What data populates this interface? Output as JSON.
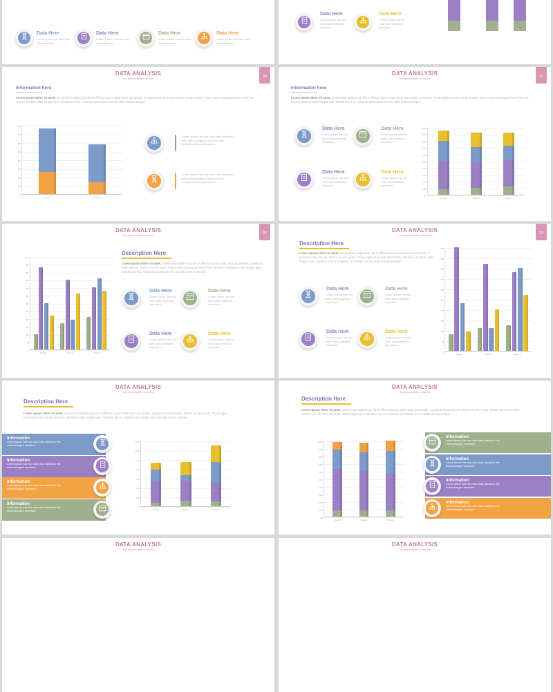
{
  "colors": {
    "blue": "#7c9bc8",
    "purple": "#9b80c6",
    "orange": "#f2a444",
    "green": "#9fb08c",
    "yellow": "#e9bf2e",
    "pink": "#c47b9c"
  },
  "slides": [
    {
      "id": "top-left-partial",
      "items": [
        {
          "title": "Data Here",
          "text": "Lorem Ipsum has two main data statistical.",
          "icon": "hourglass-icon",
          "color": "#7c9bc8"
        },
        {
          "title": "Data Here",
          "text": "Lorem Ipsum has two main data statistical.",
          "icon": "clipboard-icon",
          "color": "#9b80c6"
        },
        {
          "title": "Data Here",
          "text": "Lorem Ipsum has two main data statistical.",
          "icon": "calendar-icon",
          "color": "#9fb08c"
        },
        {
          "title": "Data Here",
          "text": "Lorem Ipsum has two main data statistical.",
          "icon": "network-icon",
          "color": "#f2a444"
        }
      ]
    },
    {
      "id": "top-right-partial",
      "items": [
        {
          "title": "Data Here",
          "text": "Lorem Ipsum has two main data statistical important.",
          "icon": "clipboard-icon",
          "color": "#9b80c6"
        },
        {
          "title": "Data Here",
          "text": "Lorem Ipsum has two main data statistical important.",
          "icon": "network-icon",
          "color": "#e9bf2e"
        }
      ]
    },
    {
      "id": "slide-20",
      "title": "DATA ANALYSIS",
      "subtitle": "Your great subtitle in this line",
      "page": "20",
      "heading": "Information here",
      "para_bold": "Lorem ipsum dolor sit amet,",
      "para": " consectetur adipiscing elit Ut efficitur ipsum vitae tortor accumsan, a pulvinar lorem lacinia. Donec eu arcu justo. Fusce eget consequat risus Proin est lacus, interdum vitae feugiat quis, faucibus vel mi. Vivamus accumsan nisi vel nulla viverra semper.",
      "items": [
        {
          "title": "",
          "text": "Lorem Ipsum has two main data statistical this methodologies important Data analysis which summarizes.",
          "icon": "network-icon",
          "color": "#7c9bc8"
        },
        {
          "title": "",
          "text": "Lorem Ipsum has two main data statistical this methodologies important Data analysis which summarizes.",
          "icon": "hourglass-icon",
          "color": "#f2a444"
        }
      ],
      "chart_data": {
        "type": "bar",
        "stacked": true,
        "categories": [
          "Group 1",
          "Group 2"
        ],
        "ylim": [
          0,
          800
        ],
        "ystep": 100,
        "series": [
          {
            "values": [
              260,
              140
            ],
            "color": "#f2a444"
          },
          {
            "values": [
              500,
              440
            ],
            "color": "#7c9bc8"
          }
        ]
      }
    },
    {
      "id": "slide-21",
      "title": "DATA ANALYSIS",
      "subtitle": "Your great subtitle in this line",
      "page": "21",
      "heading": "Information here",
      "para_bold": "Lorem ipsum dolor sit amet,",
      "para": " consectetur adipiscing elit Ut efficitur ipsum vitae tortor accumsan, a pulvinar lorem lacinia. Donec eu arcu justo. Fusce eget consequat risus Proin est lacus, interdum vitae feugiat quis, faucibus vel mi. Vivamus accumsan nisi vel nulla viverra semper.",
      "items": [
        {
          "title": "Data Here",
          "text": "Lorem Ipsum has two main data statistical important.",
          "icon": "hourglass-icon",
          "color": "#7c9bc8"
        },
        {
          "title": "Data Here",
          "text": "Lorem Ipsum has two main data statistical important.",
          "icon": "calendar-icon",
          "color": "#9fb08c"
        },
        {
          "title": "Data Here",
          "text": "Lorem Ipsum has two main data statistical important.",
          "icon": "clipboard-icon",
          "color": "#9b80c6"
        },
        {
          "title": "Data Here",
          "text": "Lorem Ipsum has two main data statistical important.",
          "icon": "network-icon",
          "color": "#e9bf2e"
        }
      ],
      "chart_data": {
        "type": "bar",
        "stacked": true,
        "categories": [
          "Group 1",
          "Group 2",
          "Group 3"
        ],
        "ylim": [
          0,
          100
        ],
        "ystep": 10,
        "suffix": "%",
        "series": [
          {
            "values": [
              8,
              10,
              12
            ],
            "color": "#9fb08c"
          },
          {
            "values": [
              42,
              38,
              40
            ],
            "color": "#9b80c6"
          },
          {
            "values": [
              30,
              22,
              20
            ],
            "color": "#7c9bc8"
          },
          {
            "values": [
              15,
              22,
              20
            ],
            "color": "#e9bf2e"
          }
        ]
      }
    },
    {
      "id": "slide-22",
      "title": "DATA ANALYSIS",
      "subtitle": "Your great subtitle in this line",
      "page": "22",
      "heading": "Description Here",
      "para_bold": "Lorem ipsum dolor sit amet,",
      "para": " consectetur adipiscing elit Ut efficitur ipsum vitae tortor accumsan, a pulvinar lorem lacinia. Donec eu arcu justo. Fusce eget consequat risus Proin est lacus, interdum vitae feugiat quis, faucibus vel mi. Vivamus accumsan nisi vel nulla viverra semper.",
      "items": [
        {
          "title": "Data Here",
          "text": "Lorem Ipsum has two main data statistical important.",
          "icon": "hourglass-icon",
          "color": "#7c9bc8"
        },
        {
          "title": "Data Here",
          "text": "Lorem Ipsum has two main data statistical important.",
          "icon": "calendar-icon",
          "color": "#9fb08c"
        },
        {
          "title": "Data Here",
          "text": "Lorem Ipsum has two main data statistical important.",
          "icon": "clipboard-icon",
          "color": "#9b80c6"
        },
        {
          "title": "Data Here",
          "text": "Lorem Ipsum has two main data statistical important.",
          "icon": "network-icon",
          "color": "#e9bf2e"
        }
      ],
      "chart_data": {
        "type": "bar",
        "stacked": false,
        "categories": [
          "Group 1",
          "Group 2",
          "Group 3"
        ],
        "ylim": [
          0,
          600
        ],
        "ystep": 50,
        "series": [
          {
            "values": [
              100,
              170,
              210
            ],
            "color": "#9fb08c"
          },
          {
            "values": [
              530,
              450,
              400
            ],
            "color": "#9b80c6"
          },
          {
            "values": [
              300,
              190,
              460
            ],
            "color": "#7c9bc8"
          },
          {
            "values": [
              220,
              360,
              380
            ],
            "color": "#e9bf2e"
          }
        ]
      }
    },
    {
      "id": "slide-23",
      "title": "DATA ANALYSIS",
      "subtitle": "Your great subtitle in this line",
      "page": "23",
      "heading": "Description Here",
      "para_bold": "Lorem ipsum dolor sit amet,",
      "para": " consectetur adipiscing elit Ut efficitur ipsum vitae tortor accumsan, a pulvinar lorem lacinia. Donec eu arcu justo. Fusce eget consequat risus Proin est lacus, interdum vitae feugiat quis, faucibus vel mi. Vivamus accumsan nisi vel nulla viverra semper.",
      "items": [
        {
          "title": "Data Here",
          "text": "Lorem Ipsum has two main data statistical important.",
          "icon": "hourglass-icon",
          "color": "#7c9bc8"
        },
        {
          "title": "Data Here",
          "text": "Lorem Ipsum has two main data statistical important.",
          "icon": "calendar-icon",
          "color": "#9fb08c"
        },
        {
          "title": "Data Here",
          "text": "Lorem Ipsum has two main data statistical important.",
          "icon": "clipboard-icon",
          "color": "#9b80c6"
        },
        {
          "title": "Data Here",
          "text": "Lorem Ipsum has two main data statistical important.",
          "icon": "network-icon",
          "color": "#e9bf2e"
        }
      ],
      "chart_data": {
        "type": "bar",
        "stacked": false,
        "categories": [
          "Group 1",
          "Group 2",
          "Group 3"
        ],
        "ylim": [
          0,
          500
        ],
        "ystep": 50,
        "series": [
          {
            "values": [
              80,
              110,
              125
            ],
            "color": "#9fb08c"
          },
          {
            "values": [
              500,
              420,
              380
            ],
            "color": "#9b80c6"
          },
          {
            "values": [
              230,
              110,
              400
            ],
            "color": "#7c9bc8"
          },
          {
            "values": [
              95,
              200,
              270
            ],
            "color": "#e9bf2e"
          }
        ]
      }
    },
    {
      "id": "slide-24",
      "title": "DATA ANALYSIS",
      "subtitle": "Your great subtitle in this line",
      "heading": "Description Here",
      "para_bold": "Lorem ipsum dolor sit amet,",
      "para": " consectetur adipiscing elit Ut efficitur ipsum vitae tortor accumsan, a pulvinar lorem lacinia. Donec eu arcu justo. Fusce eget consequat risus Proin est lacus, interdum vitae feugiat quis, faucibus vel mi. Vivamus accumsan nisi vel nulla viverra semper.",
      "info": [
        {
          "title": "Information",
          "text": "Lorem Ipsum has two main data statistical this methodologies important.",
          "icon": "hourglass-icon",
          "color": "#7c9bc8"
        },
        {
          "title": "Information",
          "text": "Lorem Ipsum has two main data statistical this methodologies important.",
          "icon": "clipboard-icon",
          "color": "#9b80c6"
        },
        {
          "title": "Information",
          "text": "Lorem Ipsum has two main data statistical this methodologies important.",
          "icon": "network-icon",
          "color": "#f2a444"
        },
        {
          "title": "Information",
          "text": "Lorem Ipsum has two main data statistical this methodologies important.",
          "icon": "calendar-icon",
          "color": "#9fb08c"
        }
      ],
      "chart_data": {
        "type": "bar",
        "stacked": true,
        "categories": [
          "Group 1",
          "Group 2",
          "Group 3"
        ],
        "ylim": [
          0,
          1400
        ],
        "ystep": 200,
        "series": [
          {
            "values": [
              80,
              120,
              100
            ],
            "color": "#9fb08c"
          },
          {
            "values": [
              450,
              420,
              400
            ],
            "color": "#9b80c6"
          },
          {
            "values": [
              250,
              130,
              450
            ],
            "color": "#7c9bc8"
          },
          {
            "values": [
              150,
              270,
              350
            ],
            "color": "#e9bf2e"
          }
        ]
      }
    },
    {
      "id": "slide-25",
      "title": "DATA ANALYSIS",
      "subtitle": "Your great subtitle in this line",
      "heading": "Description Here",
      "para_bold": "Lorem ipsum dolor sit amet,",
      "para": " consectetur adipiscing elit Ut efficitur ipsum vitae tortor accumsan, a pulvinar lorem lacinia. Donec eu arcu justo. Fusce eget consequat risus Proin est lacus, interdum vitae feugiat quis, faucibus vel mi. Vivamus accumsan nisi vel nulla viverra semper.",
      "info": [
        {
          "title": "Information",
          "text": "Lorem Ipsum has two main data statistical this methodologies important.",
          "icon": "calendar-icon",
          "color": "#9fb08c"
        },
        {
          "title": "Information",
          "text": "Lorem Ipsum has two main data statistical this methodologies important.",
          "icon": "hourglass-icon",
          "color": "#7c9bc8"
        },
        {
          "title": "Information",
          "text": "Lorem Ipsum has two main data statistical this methodologies important.",
          "icon": "clipboard-icon",
          "color": "#9b80c6"
        },
        {
          "title": "Information",
          "text": "Lorem Ipsum has two main data statistical this methodologies important.",
          "icon": "network-icon",
          "color": "#f2a444"
        }
      ],
      "chart_data": {
        "type": "bar",
        "stacked": true,
        "categories": [
          "Group 1",
          "Group 2",
          "Group 3"
        ],
        "ylim": [
          0,
          100
        ],
        "ystep": 10,
        "suffix": "%",
        "series": [
          {
            "values": [
              8,
              8,
              8
            ],
            "color": "#9fb08c"
          },
          {
            "values": [
              55,
              52,
              48
            ],
            "color": "#9b80c6"
          },
          {
            "values": [
              25,
              25,
              30
            ],
            "color": "#7c9bc8"
          },
          {
            "values": [
              10,
              12,
              14
            ],
            "color": "#f2a444"
          }
        ]
      }
    },
    {
      "id": "bottom-left-partial",
      "title": "DATA ANALYSIS",
      "subtitle": "Your great subtitle in this line"
    },
    {
      "id": "bottom-right-partial",
      "title": "DATA ANALYSIS",
      "subtitle": "Your great subtitle in this line"
    }
  ]
}
